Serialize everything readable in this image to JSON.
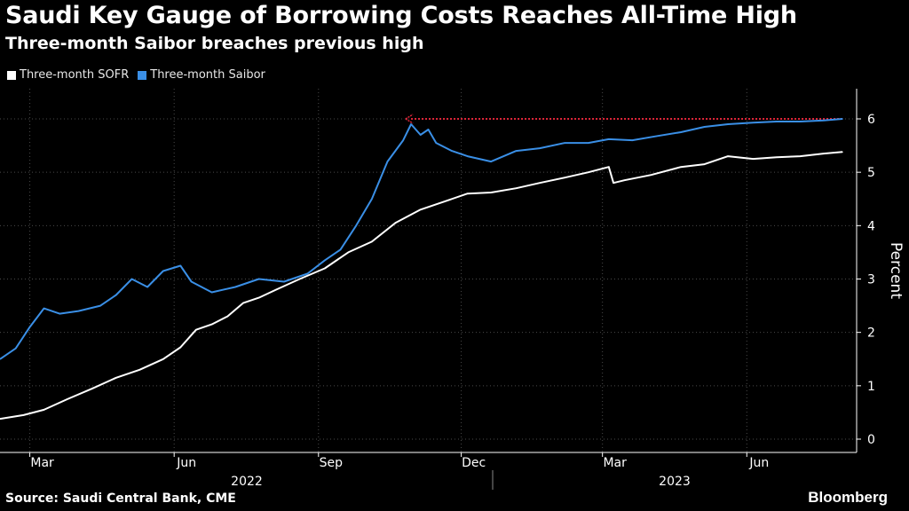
{
  "header": {
    "title": "Saudi Key Gauge of Borrowing Costs Reaches All-Time High",
    "subtitle": "Three-month Saibor breaches previous high"
  },
  "footer": {
    "source": "Source: Saudi Central Bank, CME",
    "logo": "Bloomberg"
  },
  "colors": {
    "background": "#000000",
    "sofr": "#ffffff",
    "saibor": "#3a8fe6",
    "reference_line": "#e0263a",
    "grid": "#4a4a4a"
  },
  "chart_data": {
    "type": "line",
    "title": "Saudi Key Gauge of Borrowing Costs Reaches All-Time High",
    "subtitle": "Three-month Saibor breaches previous high",
    "ylabel": "Percent",
    "ylim": [
      0,
      6
    ],
    "yticks": [
      0,
      1,
      2,
      3,
      4,
      5,
      6
    ],
    "grid": true,
    "legend_position": "top-left",
    "x_tick_labels": [
      "Mar",
      "Jun",
      "Sep",
      "Dec",
      "Mar",
      "Jun"
    ],
    "x_tick_dates": [
      "2022-03-01",
      "2022-06-01",
      "2022-09-01",
      "2022-12-01",
      "2023-03-01",
      "2023-06-01"
    ],
    "x_year_labels": [
      "2022",
      "2023"
    ],
    "x_range": [
      "2022-02-10",
      "2023-08-10"
    ],
    "series": [
      {
        "name": "Three-month SOFR",
        "color": "#ffffff",
        "points": [
          [
            "2022-02-10",
            0.38
          ],
          [
            "2022-02-25",
            0.45
          ],
          [
            "2022-03-10",
            0.55
          ],
          [
            "2022-03-25",
            0.75
          ],
          [
            "2022-04-10",
            0.95
          ],
          [
            "2022-04-25",
            1.15
          ],
          [
            "2022-05-10",
            1.3
          ],
          [
            "2022-05-25",
            1.5
          ],
          [
            "2022-06-05",
            1.72
          ],
          [
            "2022-06-15",
            2.05
          ],
          [
            "2022-06-25",
            2.15
          ],
          [
            "2022-07-05",
            2.3
          ],
          [
            "2022-07-15",
            2.55
          ],
          [
            "2022-07-25",
            2.65
          ],
          [
            "2022-08-05",
            2.8
          ],
          [
            "2022-08-20",
            3.0
          ],
          [
            "2022-09-05",
            3.2
          ],
          [
            "2022-09-20",
            3.5
          ],
          [
            "2022-10-05",
            3.7
          ],
          [
            "2022-10-20",
            4.05
          ],
          [
            "2022-11-05",
            4.3
          ],
          [
            "2022-11-20",
            4.45
          ],
          [
            "2022-12-05",
            4.6
          ],
          [
            "2022-12-20",
            4.62
          ],
          [
            "2023-01-05",
            4.7
          ],
          [
            "2023-01-20",
            4.8
          ],
          [
            "2023-02-05",
            4.9
          ],
          [
            "2023-02-20",
            5.0
          ],
          [
            "2023-03-05",
            5.1
          ],
          [
            "2023-03-08",
            4.8
          ],
          [
            "2023-03-15",
            4.85
          ],
          [
            "2023-04-01",
            4.95
          ],
          [
            "2023-04-20",
            5.1
          ],
          [
            "2023-05-05",
            5.15
          ],
          [
            "2023-05-20",
            5.3
          ],
          [
            "2023-06-05",
            5.25
          ],
          [
            "2023-06-20",
            5.28
          ],
          [
            "2023-07-05",
            5.3
          ],
          [
            "2023-07-20",
            5.35
          ],
          [
            "2023-08-01",
            5.38
          ]
        ]
      },
      {
        "name": "Three-month Saibor",
        "color": "#3a8fe6",
        "points": [
          [
            "2022-02-10",
            1.5
          ],
          [
            "2022-02-20",
            1.7
          ],
          [
            "2022-03-01",
            2.1
          ],
          [
            "2022-03-10",
            2.45
          ],
          [
            "2022-03-20",
            2.35
          ],
          [
            "2022-04-01",
            2.4
          ],
          [
            "2022-04-15",
            2.5
          ],
          [
            "2022-04-25",
            2.7
          ],
          [
            "2022-05-05",
            3.0
          ],
          [
            "2022-05-15",
            2.85
          ],
          [
            "2022-05-25",
            3.15
          ],
          [
            "2022-06-05",
            3.25
          ],
          [
            "2022-06-12",
            2.95
          ],
          [
            "2022-06-25",
            2.75
          ],
          [
            "2022-07-10",
            2.85
          ],
          [
            "2022-07-25",
            3.0
          ],
          [
            "2022-08-10",
            2.95
          ],
          [
            "2022-08-25",
            3.1
          ],
          [
            "2022-09-05",
            3.35
          ],
          [
            "2022-09-15",
            3.55
          ],
          [
            "2022-09-25",
            4.0
          ],
          [
            "2022-10-05",
            4.5
          ],
          [
            "2022-10-15",
            5.2
          ],
          [
            "2022-10-25",
            5.6
          ],
          [
            "2022-10-30",
            5.9
          ],
          [
            "2022-11-05",
            5.7
          ],
          [
            "2022-11-10",
            5.8
          ],
          [
            "2022-11-15",
            5.55
          ],
          [
            "2022-11-25",
            5.4
          ],
          [
            "2022-12-05",
            5.3
          ],
          [
            "2022-12-20",
            5.2
          ],
          [
            "2023-01-05",
            5.4
          ],
          [
            "2023-01-20",
            5.45
          ],
          [
            "2023-02-05",
            5.55
          ],
          [
            "2023-02-20",
            5.55
          ],
          [
            "2023-03-05",
            5.62
          ],
          [
            "2023-03-20",
            5.6
          ],
          [
            "2023-04-05",
            5.68
          ],
          [
            "2023-04-20",
            5.75
          ],
          [
            "2023-05-05",
            5.85
          ],
          [
            "2023-05-20",
            5.9
          ],
          [
            "2023-06-05",
            5.93
          ],
          [
            "2023-06-20",
            5.95
          ],
          [
            "2023-07-05",
            5.95
          ],
          [
            "2023-07-20",
            5.97
          ],
          [
            "2023-08-01",
            6.0
          ]
        ]
      }
    ],
    "reference_line": {
      "label": "",
      "color": "#e0263a",
      "value": 6.0,
      "from": "2022-10-30",
      "to": "2023-08-01"
    }
  }
}
